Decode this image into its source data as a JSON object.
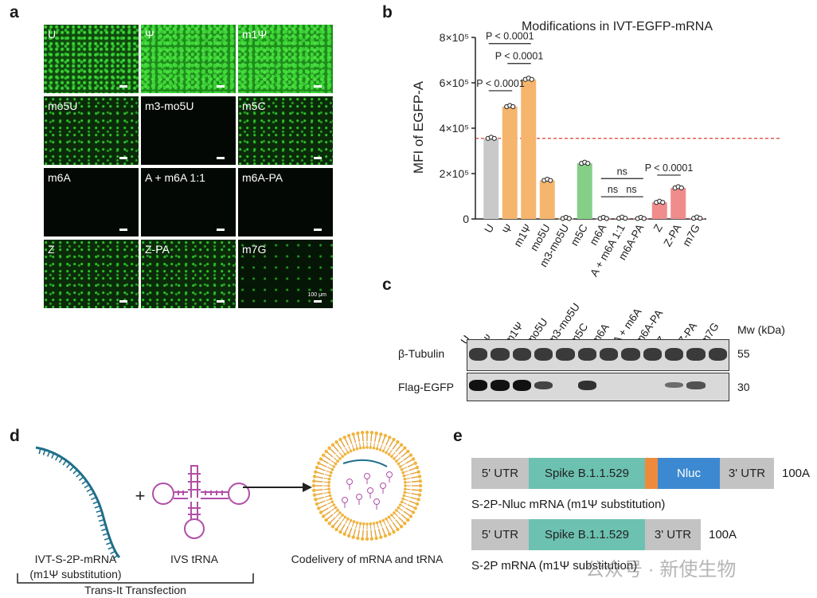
{
  "panels": {
    "a": "a",
    "b": "b",
    "c": "c",
    "d": "d",
    "e": "e"
  },
  "panel_a": {
    "tiles": [
      {
        "label": "U",
        "density": "high"
      },
      {
        "label": "Ψ",
        "density": "vhigh"
      },
      {
        "label": "m1Ψ",
        "density": "vhigh"
      },
      {
        "label": "mo5U",
        "density": "med"
      },
      {
        "label": "m3-mo5U",
        "density": "none"
      },
      {
        "label": "m5C",
        "density": "med"
      },
      {
        "label": "m6A",
        "density": "none"
      },
      {
        "label": "A + m6A 1:1",
        "density": "none"
      },
      {
        "label": "m6A-PA",
        "density": "none"
      },
      {
        "label": "Z",
        "density": "med"
      },
      {
        "label": "Z-PA",
        "density": "med"
      },
      {
        "label": "m7G",
        "density": "low"
      }
    ],
    "scale_text": "100 μm"
  },
  "chart_data": {
    "type": "bar",
    "title": "Modifications in IVT-EGFP-mRNA",
    "ylabel": "MFI of EGFP-A",
    "ylim": [
      0,
      800000
    ],
    "yticks": [
      "0",
      "2×10⁵",
      "4×10⁵",
      "6×10⁵",
      "8×10⁵"
    ],
    "reference_line": 355000,
    "categories": [
      "U",
      "Ψ",
      "m1Ψ",
      "mo5U",
      "m3-mo5U",
      "m5C",
      "m6A",
      "A + m6A 1:1",
      "m6A-PA",
      "Z",
      "Z-PA",
      "m7G"
    ],
    "values": [
      355000,
      495000,
      615000,
      170000,
      2000,
      245000,
      2000,
      3000,
      2000,
      73000,
      137000,
      3000
    ],
    "colors": [
      "#c9c9c9",
      "#f5b56d",
      "#f5b56d",
      "#f5b56d",
      "#f5b56d",
      "#86cf86",
      "#f08c8c",
      "#f08c8c",
      "#f08c8c",
      "#f08c8c",
      "#f08c8c",
      "#f08c8c"
    ],
    "annotations": [
      {
        "text": "P < 0.0001",
        "from": 0,
        "to": 2,
        "level": 1
      },
      {
        "text": "P < 0.0001",
        "from": 1,
        "to": 2,
        "level": 2
      },
      {
        "text": "P < 0.0001",
        "from": 0,
        "to": 1,
        "level": 3
      },
      {
        "text": "ns",
        "from": 6,
        "to": 8,
        "level": 1
      },
      {
        "text": "ns",
        "from": 6,
        "to": 7,
        "level": 2
      },
      {
        "text": "ns",
        "from": 7,
        "to": 8,
        "level": 2
      },
      {
        "text": "P < 0.0001",
        "from": 9,
        "to": 10,
        "level": 1
      }
    ]
  },
  "panel_c": {
    "lanes": [
      "U",
      "Ψ",
      "m1Ψ",
      "mo5U",
      "m3-mo5U",
      "m5C",
      "m6A",
      "A + m6A",
      "m6A-PA",
      "Z",
      "Z-PA",
      "m7G"
    ],
    "mw_header": "Mw (kDa)",
    "rows": [
      {
        "name": "β-Tubulin",
        "mw": "55"
      },
      {
        "name": "Flag-EGFP",
        "mw": "30"
      }
    ]
  },
  "panel_d": {
    "mrna_label": "IVT-S-2P-mRNA",
    "mrna_sub": "(m1Ψ substitution)",
    "plus": "+",
    "trna_label": "IVS tRNA",
    "result_label": "Codelivery of mRNA and tRNA",
    "bracket_label": "Trans-It Transfection"
  },
  "panel_e": {
    "construct1": {
      "segments": [
        {
          "text": "5' UTR",
          "color": "#c3c3c3"
        },
        {
          "text": "Spike B.1.1.529",
          "color": "#6cc1b1"
        },
        {
          "text": "",
          "color": "#ef8a3d"
        },
        {
          "text": "Nluc",
          "color": "#3d89d1"
        },
        {
          "text": "3' UTR",
          "color": "#c3c3c3"
        }
      ],
      "tail": "100A",
      "caption": "S-2P-Nluc mRNA (m1Ψ substitution)"
    },
    "construct2": {
      "segments": [
        {
          "text": "5' UTR",
          "color": "#c3c3c3"
        },
        {
          "text": "Spike B.1.1.529",
          "color": "#6cc1b1"
        },
        {
          "text": "3' UTR",
          "color": "#c3c3c3"
        }
      ],
      "tail": "100A",
      "caption": "S-2P mRNA (m1Ψ substitution)"
    }
  },
  "watermark": "公众号 · 新使生物"
}
